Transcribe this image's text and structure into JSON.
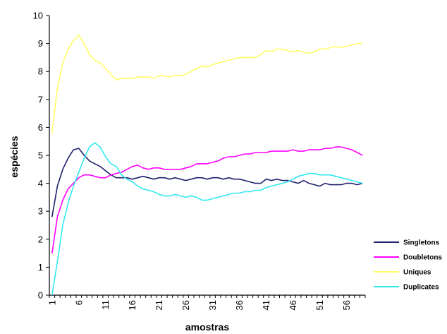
{
  "chart_data": {
    "type": "line",
    "xlabel": "amostras",
    "ylabel": "espécies",
    "ylim": [
      0,
      10
    ],
    "xlim": [
      1,
      59
    ],
    "yticks": [
      "0",
      "1",
      "2",
      "3",
      "4",
      "5",
      "6",
      "7",
      "8",
      "9",
      "10"
    ],
    "xticks": [
      "1",
      "6",
      "11",
      "16",
      "21",
      "26",
      "31",
      "36",
      "41",
      "46",
      "51",
      "56"
    ],
    "grid": false,
    "legend_position": "bottom-right",
    "x": [
      1,
      2,
      3,
      4,
      5,
      6,
      7,
      8,
      9,
      10,
      11,
      12,
      13,
      14,
      15,
      16,
      17,
      18,
      19,
      20,
      21,
      22,
      23,
      24,
      25,
      26,
      27,
      28,
      29,
      30,
      31,
      32,
      33,
      34,
      35,
      36,
      37,
      38,
      39,
      40,
      41,
      42,
      43,
      44,
      45,
      46,
      47,
      48,
      49,
      50,
      51,
      52,
      53,
      54,
      55,
      56,
      57,
      58,
      59
    ],
    "series": [
      {
        "name": "Singletons",
        "color": "#1f1f6e",
        "values": [
          2.8,
          3.9,
          4.5,
          4.9,
          5.2,
          5.25,
          5.0,
          4.8,
          4.7,
          4.6,
          4.45,
          4.3,
          4.2,
          4.2,
          4.2,
          4.15,
          4.2,
          4.25,
          4.2,
          4.15,
          4.2,
          4.2,
          4.15,
          4.2,
          4.15,
          4.1,
          4.15,
          4.2,
          4.2,
          4.15,
          4.2,
          4.2,
          4.15,
          4.2,
          4.15,
          4.15,
          4.1,
          4.05,
          4.0,
          4.0,
          4.15,
          4.1,
          4.15,
          4.1,
          4.1,
          4.05,
          4.0,
          4.1,
          4.0,
          3.95,
          3.9,
          4.0,
          3.95,
          3.95,
          3.95,
          4.0,
          4.0,
          3.95,
          4.0
        ]
      },
      {
        "name": "Doubletons",
        "color": "#ff00ff",
        "values": [
          1.5,
          2.8,
          3.4,
          3.8,
          4.0,
          4.2,
          4.3,
          4.3,
          4.25,
          4.2,
          4.2,
          4.3,
          4.35,
          4.4,
          4.5,
          4.6,
          4.65,
          4.55,
          4.5,
          4.55,
          4.55,
          4.5,
          4.5,
          4.5,
          4.5,
          4.55,
          4.6,
          4.7,
          4.7,
          4.7,
          4.75,
          4.8,
          4.9,
          4.95,
          4.95,
          5.0,
          5.05,
          5.05,
          5.1,
          5.1,
          5.1,
          5.15,
          5.15,
          5.15,
          5.15,
          5.2,
          5.15,
          5.15,
          5.2,
          5.2,
          5.2,
          5.25,
          5.25,
          5.3,
          5.3,
          5.25,
          5.2,
          5.1,
          5.0
        ]
      },
      {
        "name": "Uniques",
        "color": "#ffff66",
        "values": [
          5.8,
          7.4,
          8.3,
          8.8,
          9.1,
          9.3,
          9.0,
          8.6,
          8.4,
          8.3,
          8.1,
          7.9,
          7.7,
          7.75,
          7.75,
          7.75,
          7.8,
          7.8,
          7.8,
          7.75,
          7.85,
          7.85,
          7.8,
          7.85,
          7.85,
          7.9,
          8.0,
          8.1,
          8.2,
          8.15,
          8.25,
          8.3,
          8.35,
          8.4,
          8.45,
          8.5,
          8.5,
          8.5,
          8.5,
          8.6,
          8.75,
          8.7,
          8.8,
          8.8,
          8.75,
          8.7,
          8.75,
          8.7,
          8.65,
          8.7,
          8.8,
          8.8,
          8.85,
          8.9,
          8.85,
          8.9,
          8.95,
          9.0,
          9.0
        ]
      },
      {
        "name": "Duplicates",
        "color": "#33e8f0",
        "values": [
          0.0,
          1.2,
          2.5,
          3.3,
          3.9,
          4.4,
          4.9,
          5.3,
          5.45,
          5.3,
          4.95,
          4.7,
          4.6,
          4.3,
          4.15,
          4.05,
          3.9,
          3.8,
          3.75,
          3.7,
          3.6,
          3.55,
          3.55,
          3.6,
          3.55,
          3.5,
          3.55,
          3.5,
          3.4,
          3.4,
          3.45,
          3.5,
          3.55,
          3.6,
          3.65,
          3.65,
          3.7,
          3.7,
          3.75,
          3.75,
          3.85,
          3.9,
          3.95,
          4.0,
          4.05,
          4.15,
          4.25,
          4.3,
          4.35,
          4.35,
          4.3,
          4.3,
          4.3,
          4.25,
          4.2,
          4.15,
          4.1,
          4.05,
          4.0
        ]
      }
    ]
  }
}
